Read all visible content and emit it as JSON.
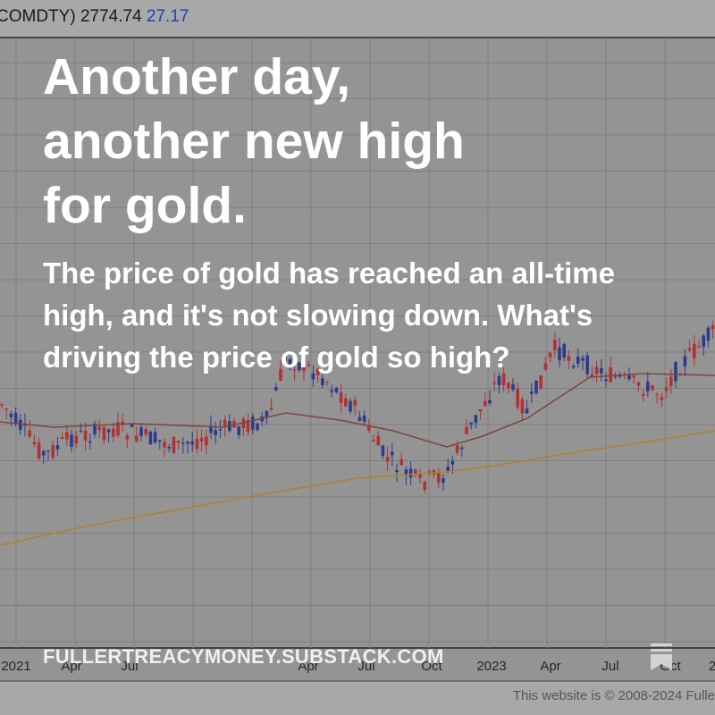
{
  "header": {
    "ticker": "COMDTY)",
    "price": "2774.74",
    "change": "27.17"
  },
  "title": "Another day, another new high for gold.",
  "subtitle": "The price of gold has reached an all-time high, and it's not slowing down. What's driving the price of gold so high?",
  "site": "FULLERTREACYMONEY.SUBSTACK.COM",
  "x_axis_labels": [
    "2021",
    "Apr",
    "Jul",
    "Apr",
    "Jul",
    "Oct",
    "2023",
    "Apr",
    "Jul",
    "Oct",
    "2"
  ],
  "footer": "This website is © 2008-2024 Fulle"
}
